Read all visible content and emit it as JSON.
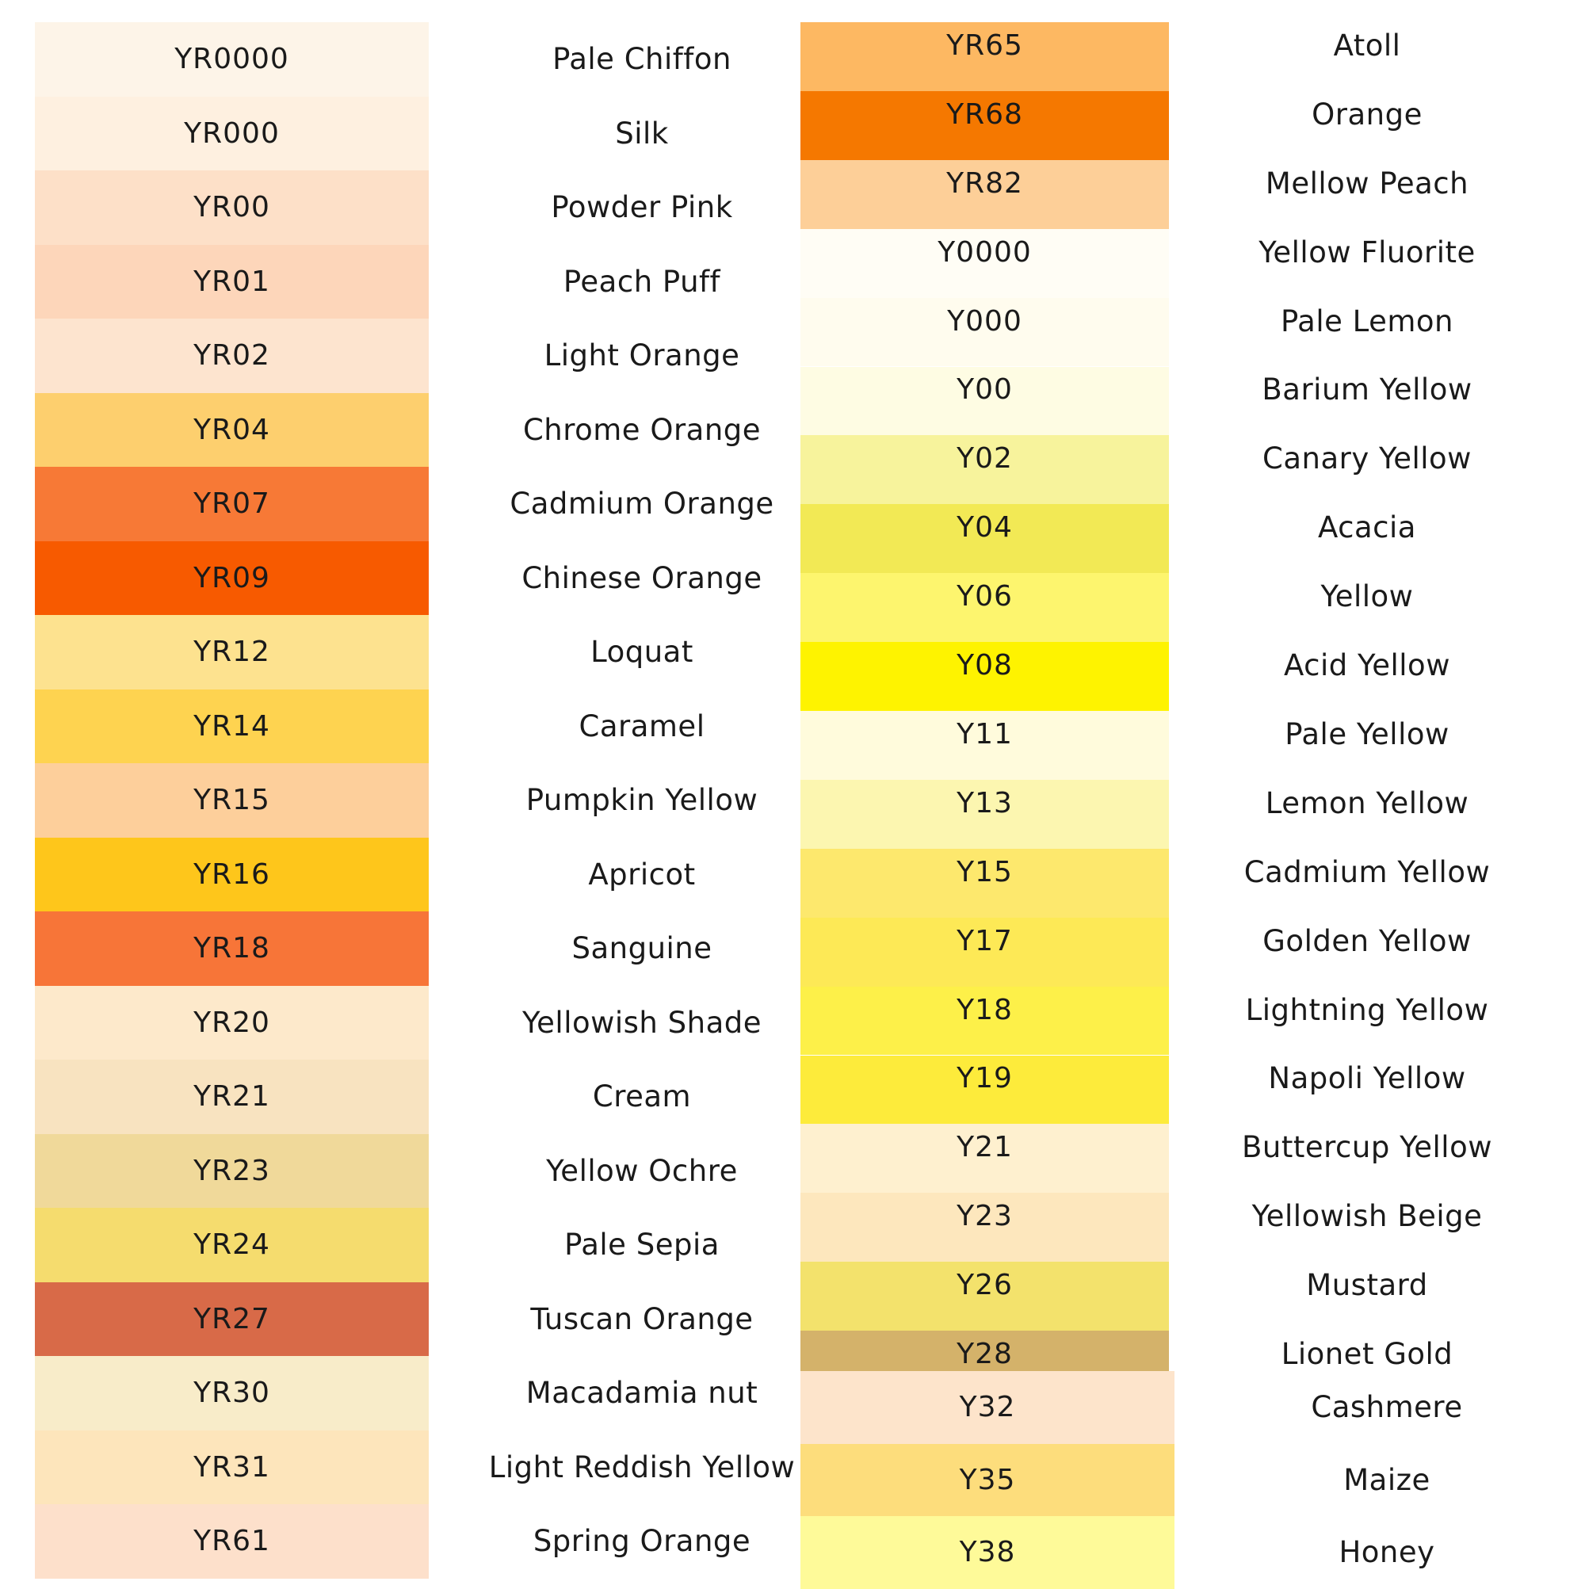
{
  "left_table": [
    {
      "code": "YR0000",
      "name": "Pale Chiffon",
      "color": "#fdf4e8"
    },
    {
      "code": "YR000",
      "name": "Silk",
      "color": "#fef0e0"
    },
    {
      "code": "YR00",
      "name": "Powder Pink",
      "color": "#fde0c8"
    },
    {
      "code": "YR01",
      "name": "Peach Puff",
      "color": "#fdd6ba"
    },
    {
      "code": "YR02",
      "name": "Light Orange",
      "color": "#fde4cf"
    },
    {
      "code": "YR04",
      "name": "Chrome Orange",
      "color": "#fdcf6e"
    },
    {
      "code": "YR07",
      "name": "Cadmium Orange",
      "color": "#f77936"
    },
    {
      "code": "YR09",
      "name": "Chinese Orange",
      "color": "#f75a00"
    },
    {
      "code": "YR12",
      "name": "Loquat",
      "color": "#fde28f"
    },
    {
      "code": "YR14",
      "name": "Caramel",
      "color": "#fed350"
    },
    {
      "code": "YR15",
      "name": "Pumpkin Yellow",
      "color": "#fdcf9b"
    },
    {
      "code": "YR16",
      "name": "Apricot",
      "color": "#fec61b"
    },
    {
      "code": "YR18",
      "name": "Sanguine",
      "color": "#f77538"
    },
    {
      "code": "YR20",
      "name": "Yellowish Shade",
      "color": "#fde9cb"
    },
    {
      "code": "YR21",
      "name": "Cream",
      "color": "#f8e3c0"
    },
    {
      "code": "YR23",
      "name": "Yellow Ochre",
      "color": "#f0d99a"
    },
    {
      "code": "YR24",
      "name": "Pale Sepia",
      "color": "#f5dc6e"
    },
    {
      "code": "YR27",
      "name": "Tuscan Orange",
      "color": "#d86a48"
    },
    {
      "code": "YR30",
      "name": "Macadamia nut",
      "color": "#f8ecc9"
    },
    {
      "code": "YR31",
      "name": "Light Reddish Yellow",
      "color": "#fde5bb"
    },
    {
      "code": "YR61",
      "name": "Spring Orange",
      "color": "#fde0cb"
    }
  ],
  "right_table": [
    {
      "code": "YR65",
      "name": "Atoll",
      "color": "#fdb862"
    },
    {
      "code": "YR68",
      "name": "Orange",
      "color": "#f57800"
    },
    {
      "code": "YR82",
      "name": "Mellow Peach",
      "color": "#fdcf98"
    },
    {
      "code": "Y0000",
      "name": "Yellow Fluorite",
      "color": "#fffdf5"
    },
    {
      "code": "Y000",
      "name": "Pale Lemon",
      "color": "#fffcee"
    },
    {
      "code": "Y00",
      "name": "Barium Yellow",
      "color": "#fefce3"
    },
    {
      "code": "Y02",
      "name": "Canary Yellow",
      "color": "#f7f39c"
    },
    {
      "code": "Y04",
      "name": "Acacia",
      "color": "#f2e955"
    },
    {
      "code": "Y06",
      "name": "Yellow",
      "color": "#fdf56e"
    },
    {
      "code": "Y08",
      "name": "Acid Yellow",
      "color": "#fef300"
    },
    {
      "code": "Y11",
      "name": "Pale Yellow",
      "color": "#fffbdc"
    },
    {
      "code": "Y13",
      "name": "Lemon Yellow",
      "color": "#fcf6b0"
    },
    {
      "code": "Y15",
      "name": "Cadmium Yellow",
      "color": "#fde86d"
    },
    {
      "code": "Y17",
      "name": "Golden Yellow",
      "color": "#fde956"
    },
    {
      "code": "Y18",
      "name": "Lightning Yellow",
      "color": "#fdf049"
    },
    {
      "code": "Y19",
      "name": "Napoli Yellow",
      "color": "#fdeb3b"
    },
    {
      "code": "Y21",
      "name": "Buttercup Yellow",
      "color": "#fef0cf"
    },
    {
      "code": "Y23",
      "name": "Yellowish Beige",
      "color": "#fde7bd"
    },
    {
      "code": "Y26",
      "name": "Mustard",
      "color": "#f3e26c"
    },
    {
      "code": "Y28",
      "name": "Lionet Gold",
      "color": "#d4b26a"
    }
  ],
  "bottom_table": [
    {
      "code": "Y32",
      "name": "Cashmere",
      "color": "#fde4cb"
    },
    {
      "code": "Y35",
      "name": "Maize",
      "color": "#fddd7c"
    },
    {
      "code": "Y38",
      "name": "Honey",
      "color": "#fefa99"
    }
  ]
}
